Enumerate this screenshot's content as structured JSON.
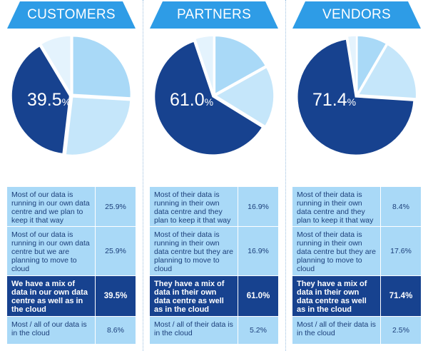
{
  "chart_data": [
    {
      "type": "pie",
      "title": "CUSTOMERS",
      "highlight_label": "39.5%",
      "categories": [
        "Most of our data is running in our own data centre and we plan to keep it that way",
        "Most of our data is running in our own data centre but we are planning to move to cloud",
        "We have a mix of data in our own data centre as well as in the cloud",
        "Most / all of our data is in the cloud"
      ],
      "values": [
        25.9,
        25.9,
        39.5,
        8.6
      ],
      "value_labels": [
        "25.9%",
        "25.9%",
        "39.5%",
        "8.6%"
      ],
      "highlight_index": 2
    },
    {
      "type": "pie",
      "title": "PARTNERS",
      "highlight_label": "61.0%",
      "categories": [
        "Most of their data is running in their own data centre and they plan to keep it that way",
        "Most of their data is running in their own data centre but they are planning to move to cloud",
        "They have a mix of data in their own data centre as well as in the cloud",
        "Most / all of their data is in the cloud"
      ],
      "values": [
        16.9,
        16.9,
        61.0,
        5.2
      ],
      "value_labels": [
        "16.9%",
        "16.9%",
        "61.0%",
        "5.2%"
      ],
      "highlight_index": 2
    },
    {
      "type": "pie",
      "title": "VENDORS",
      "highlight_label": "71.4%",
      "categories": [
        "Most of their data is running in their own data centre and they plan to keep it that way",
        "Most of their data is running in their own data centre but they are planning to move to cloud",
        "They have a mix of data in their own data centre as well as in the cloud",
        "Most / all of their data is in the cloud"
      ],
      "values": [
        8.4,
        17.6,
        71.4,
        2.5
      ],
      "value_labels": [
        "8.4%",
        "17.6%",
        "71.4%",
        "2.5%"
      ],
      "highlight_index": 2
    }
  ],
  "colors": {
    "title_bg": "#2e9ce6",
    "slice_light": "#a9d9f7",
    "slice_mid": "#c5e6fa",
    "slice_dark": "#17428f",
    "slice_pale": "#e4f3fd"
  }
}
